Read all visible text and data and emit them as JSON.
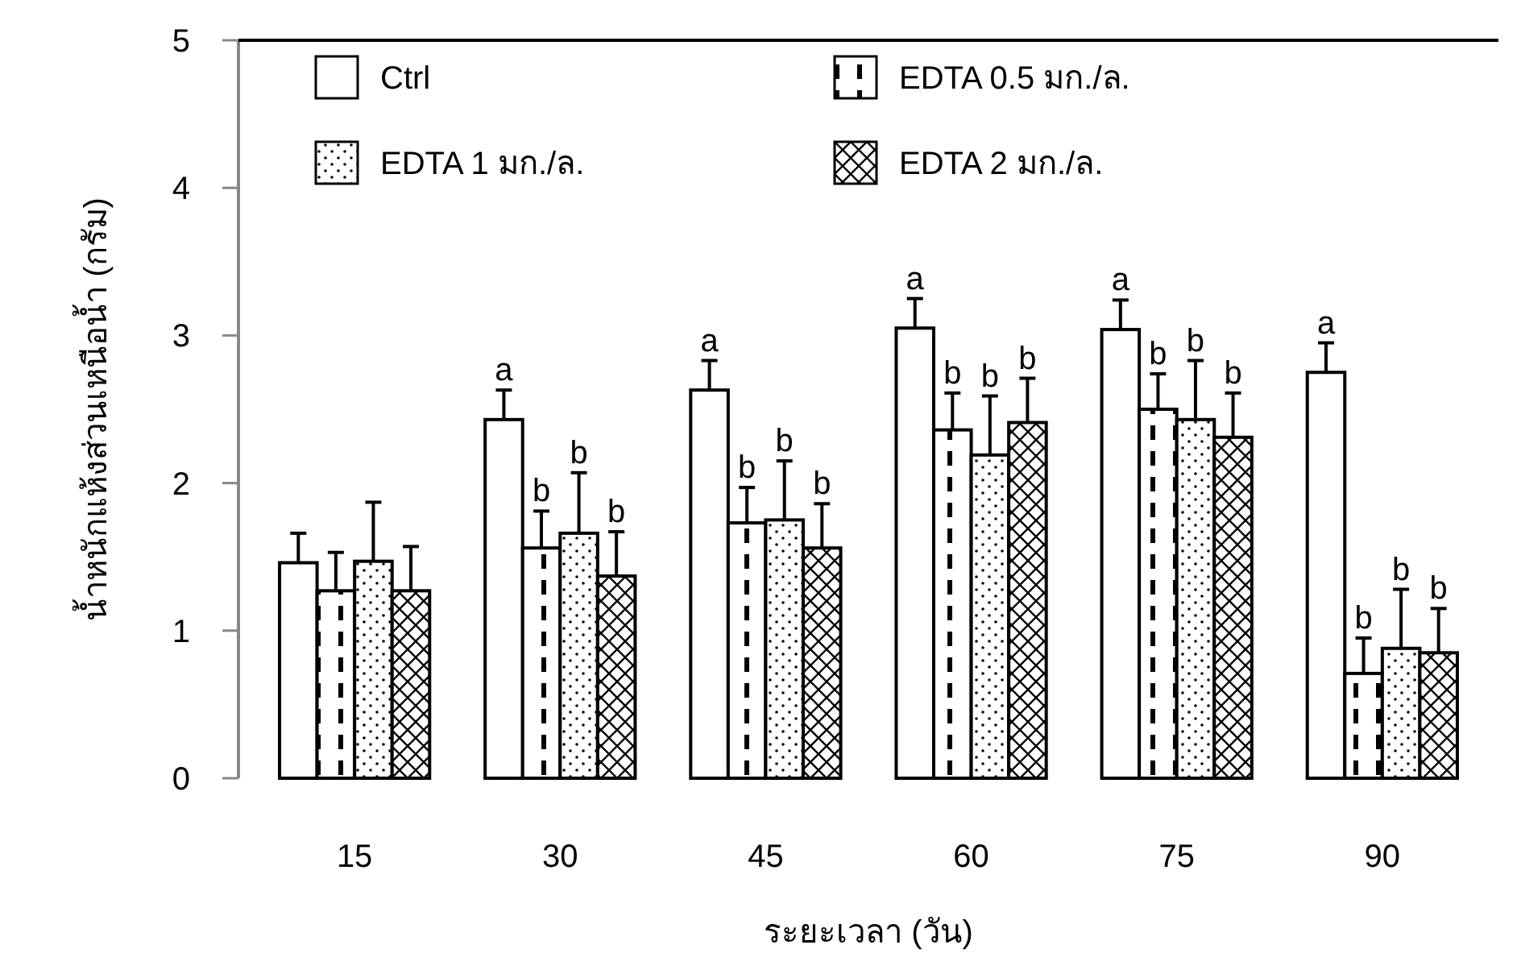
{
  "chart_data": {
    "type": "bar",
    "xlabel": "ระยะเวลา (วัน)",
    "ylabel": "น้ำหนักแห้งส่วนเหนือน้ำ (กรัม)",
    "categories": [
      "15",
      "30",
      "45",
      "60",
      "75",
      "90"
    ],
    "ylim": [
      0,
      5
    ],
    "yticks": [
      0,
      1,
      2,
      3,
      4,
      5
    ],
    "legend": "top left",
    "grid": false,
    "series": [
      {
        "name": "Ctrl",
        "color": "#000000",
        "values": [
          1.46,
          2.43,
          2.63,
          3.05,
          3.04,
          2.75
        ],
        "errors": [
          0.2,
          0.2,
          0.2,
          0.2,
          0.2,
          0.2
        ],
        "value_labels": [
          null,
          "a",
          "a",
          "a",
          "a",
          "a"
        ]
      },
      {
        "name": "EDTA 0.5 มก./ล.",
        "color": "#000000",
        "values": [
          1.27,
          1.56,
          1.73,
          2.36,
          2.5,
          0.71
        ],
        "errors": [
          0.26,
          0.25,
          0.24,
          0.25,
          0.24,
          0.24
        ],
        "value_labels": [
          null,
          "b",
          "b",
          "b",
          "b",
          "b"
        ]
      },
      {
        "name": "EDTA 1 มก./ล.",
        "color": "#000000",
        "values": [
          1.47,
          1.66,
          1.75,
          2.19,
          2.43,
          0.88
        ],
        "errors": [
          0.4,
          0.41,
          0.4,
          0.4,
          0.4,
          0.4
        ],
        "value_labels": [
          null,
          "b",
          "b",
          "b",
          "b",
          "b"
        ]
      },
      {
        "name": "EDTA 2 มก./ล.",
        "color": "#000000",
        "values": [
          1.27,
          1.37,
          1.56,
          2.41,
          2.31,
          0.85
        ],
        "errors": [
          0.3,
          0.3,
          0.3,
          0.3,
          0.3,
          0.3
        ],
        "value_labels": [
          null,
          "b",
          "b",
          "b",
          "b",
          "b"
        ]
      }
    ]
  }
}
